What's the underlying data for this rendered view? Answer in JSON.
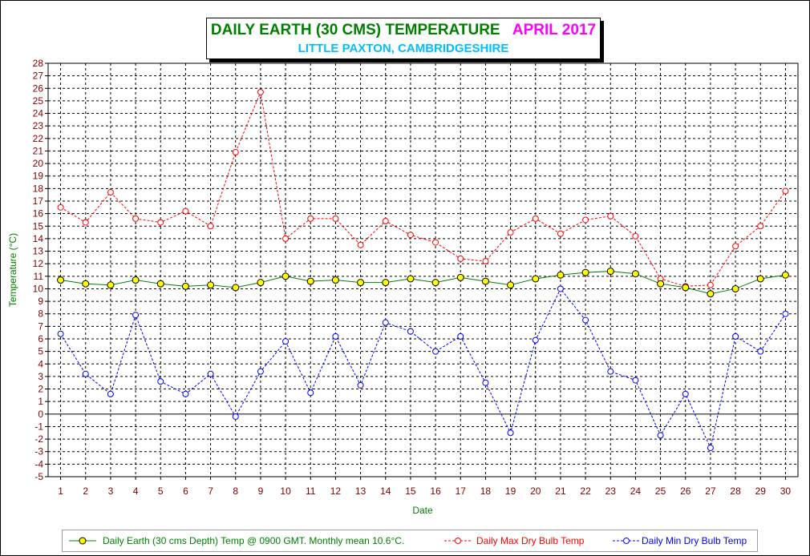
{
  "title": {
    "main": "DAILY EARTH (30 CMS) TEMPERATURE",
    "month": "APRIL 2017",
    "subtitle": "LITTLE PAXTON, CAMBRIDGESHIRE"
  },
  "colors": {
    "earth": "#008000",
    "earth_marker_fill": "#ffff00",
    "max": "#ff0000",
    "min": "#0000ff",
    "ticks": "#800000",
    "axis_title": "#008000",
    "title_main": "#008000",
    "title_month": "#ff00ff",
    "subtitle": "#00bfff"
  },
  "chart_data": {
    "type": "line",
    "xlabel": "Date",
    "ylabel": "Temperature (°C)",
    "ylim": [
      -5,
      28
    ],
    "xlim": [
      0.5,
      30.5
    ],
    "grid": true,
    "legend_position": "bottom",
    "x": [
      1,
      2,
      3,
      4,
      5,
      6,
      7,
      8,
      9,
      10,
      11,
      12,
      13,
      14,
      15,
      16,
      17,
      18,
      19,
      20,
      21,
      22,
      23,
      24,
      25,
      26,
      27,
      28,
      29,
      30
    ],
    "series": [
      {
        "name": "Daily Earth (30 cms Depth) Temp @ 0900 GMT. Monthly mean 10.6°C.",
        "key": "earth",
        "values": [
          10.7,
          10.4,
          10.3,
          10.7,
          10.4,
          10.2,
          10.3,
          10.1,
          10.5,
          11.0,
          10.6,
          10.7,
          10.5,
          10.5,
          10.8,
          10.5,
          10.9,
          10.6,
          10.3,
          10.8,
          11.1,
          11.3,
          11.4,
          11.2,
          10.4,
          10.1,
          9.6,
          10.0,
          10.8,
          11.1
        ]
      },
      {
        "name": "Daily Max Dry Bulb Temp",
        "key": "max",
        "values": [
          16.5,
          15.3,
          17.7,
          15.6,
          15.3,
          16.2,
          15.0,
          20.9,
          25.7,
          14.0,
          15.6,
          15.6,
          13.5,
          15.4,
          14.3,
          13.7,
          12.4,
          12.2,
          14.5,
          15.6,
          14.4,
          15.5,
          15.8,
          14.2,
          10.8,
          10.2,
          10.3,
          13.4,
          15.0,
          17.8
        ]
      },
      {
        "name": "Daily Min Dry Bulb Temp",
        "key": "min",
        "values": [
          6.4,
          3.2,
          1.6,
          7.9,
          2.6,
          1.6,
          3.2,
          -0.2,
          3.4,
          5.8,
          1.7,
          6.2,
          2.3,
          7.3,
          6.6,
          5.0,
          6.2,
          2.5,
          -1.5,
          5.9,
          10.0,
          7.5,
          3.4,
          2.7,
          -1.7,
          1.6,
          -2.7,
          6.2,
          5.0,
          8.0
        ]
      }
    ]
  }
}
